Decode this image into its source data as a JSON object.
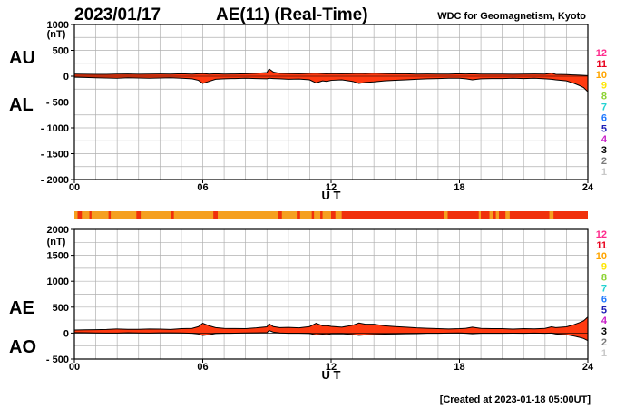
{
  "header": {
    "date": "2023/01/17",
    "title": "AE(11) (Real-Time)",
    "source": "WDC for Geomagnetism, Kyoto",
    "created": "[Created at 2023-01-18 05:00UT]"
  },
  "station_key": {
    "labels": [
      "12",
      "11",
      "10",
      "9",
      "8",
      "7",
      "6",
      "5",
      "4",
      "3",
      "2",
      "1"
    ],
    "colors": [
      "#ff2a8c",
      "#e8001c",
      "#ffa500",
      "#ffe600",
      "#8cd232",
      "#23d2d2",
      "#1e78ff",
      "#1e1eb4",
      "#c81ec8",
      "#000000",
      "#7a7a7a",
      "#c8c8c8"
    ]
  },
  "colors": {
    "fill": "#ff3a10",
    "strip_main": "#f0300c",
    "strip_alt": "#f5a020",
    "line": "#000000",
    "grid": "#b0b0b0"
  },
  "chart_data": [
    {
      "id": "au_al",
      "type": "area",
      "series_labels": [
        "AU",
        "AL"
      ],
      "xlabel": "U T",
      "ylabel_unit": "(nT)",
      "xlim": [
        0,
        24
      ],
      "ylim": [
        -2000,
        1000
      ],
      "x_ticks": [
        "00",
        "06",
        "12",
        "18",
        "24"
      ],
      "y_ticks": [
        "1000",
        "500",
        "0",
        "- 500",
        "- 1000",
        "- 1500",
        "- 2000"
      ],
      "y_tick_values": [
        1000,
        500,
        0,
        -500,
        -1000,
        -1500,
        -2000
      ],
      "x_hours": [
        0,
        0.5,
        1,
        1.5,
        2,
        2.5,
        3,
        3.5,
        4,
        4.5,
        5,
        5.5,
        5.8,
        6,
        6.3,
        6.6,
        7,
        7.5,
        8,
        8.5,
        9,
        9.1,
        9.3,
        9.6,
        10,
        10.5,
        11,
        11.3,
        11.6,
        11.8,
        12,
        12.5,
        13,
        13.3,
        13.6,
        14,
        14.5,
        15,
        15.5,
        16,
        16.5,
        17,
        17.5,
        18,
        18.3,
        18.6,
        19,
        19.5,
        20,
        20.5,
        21,
        21.5,
        22,
        22.3,
        22.5,
        23,
        23.3,
        23.6,
        23.8,
        24
      ],
      "au": [
        40,
        38,
        35,
        35,
        40,
        42,
        38,
        40,
        42,
        40,
        45,
        40,
        45,
        50,
        40,
        45,
        40,
        42,
        45,
        55,
        70,
        140,
        80,
        55,
        50,
        45,
        55,
        60,
        50,
        45,
        50,
        45,
        50,
        55,
        50,
        60,
        50,
        45,
        45,
        40,
        42,
        40,
        40,
        45,
        42,
        45,
        40,
        40,
        40,
        38,
        40,
        42,
        40,
        60,
        35,
        30,
        25,
        20,
        15,
        10
      ],
      "al": [
        -20,
        -25,
        -30,
        -35,
        -40,
        -30,
        -35,
        -40,
        -35,
        -30,
        -40,
        -50,
        -80,
        -140,
        -100,
        -60,
        -50,
        -45,
        -40,
        -45,
        -50,
        -40,
        -45,
        -50,
        -60,
        -55,
        -70,
        -130,
        -90,
        -100,
        -80,
        -70,
        -100,
        -140,
        -120,
        -110,
        -90,
        -80,
        -70,
        -60,
        -50,
        -45,
        -40,
        -40,
        -50,
        -70,
        -50,
        -45,
        -45,
        -40,
        -45,
        -40,
        -50,
        -60,
        -70,
        -90,
        -130,
        -180,
        -220,
        -300
      ]
    },
    {
      "id": "ae_ao",
      "type": "area",
      "series_labels": [
        "AE",
        "AO"
      ],
      "xlabel": "U T",
      "ylabel_unit": "(nT)",
      "xlim": [
        0,
        24
      ],
      "ylim": [
        -500,
        2000
      ],
      "x_ticks": [
        "00",
        "06",
        "12",
        "18",
        "24"
      ],
      "y_ticks": [
        "2000",
        "1500",
        "1000",
        "500",
        "0",
        "- 500"
      ],
      "y_tick_values": [
        2000,
        1500,
        1000,
        500,
        0,
        -500
      ],
      "x_hours": [
        0,
        0.5,
        1,
        1.5,
        2,
        2.5,
        3,
        3.5,
        4,
        4.5,
        5,
        5.5,
        5.8,
        6,
        6.3,
        6.6,
        7,
        7.5,
        8,
        8.5,
        9,
        9.1,
        9.3,
        9.6,
        10,
        10.5,
        11,
        11.3,
        11.6,
        11.8,
        12,
        12.5,
        13,
        13.3,
        13.6,
        14,
        14.5,
        15,
        15.5,
        16,
        16.5,
        17,
        17.5,
        18,
        18.3,
        18.6,
        19,
        19.5,
        20,
        20.5,
        21,
        21.5,
        22,
        22.3,
        22.5,
        23,
        23.3,
        23.6,
        23.8,
        24
      ],
      "ae": [
        60,
        63,
        65,
        70,
        80,
        72,
        73,
        80,
        77,
        70,
        85,
        90,
        125,
        190,
        140,
        105,
        90,
        87,
        85,
        100,
        120,
        180,
        125,
        105,
        110,
        100,
        125,
        190,
        140,
        145,
        130,
        115,
        150,
        195,
        170,
        170,
        140,
        125,
        115,
        100,
        92,
        85,
        80,
        85,
        92,
        115,
        90,
        85,
        85,
        78,
        85,
        82,
        90,
        120,
        105,
        120,
        155,
        200,
        235,
        310
      ],
      "ao": [
        10,
        7,
        3,
        0,
        0,
        6,
        2,
        0,
        4,
        5,
        3,
        -5,
        -18,
        -45,
        -30,
        -8,
        -5,
        -2,
        3,
        5,
        10,
        50,
        18,
        3,
        -5,
        -5,
        -8,
        -35,
        -20,
        -28,
        -15,
        -13,
        -25,
        -43,
        -35,
        -25,
        -20,
        -18,
        -13,
        -10,
        -4,
        -3,
        0,
        3,
        -4,
        -13,
        -5,
        -3,
        -3,
        -1,
        -3,
        1,
        -5,
        0,
        -18,
        -30,
        -53,
        -80,
        -103,
        -145
      ]
    },
    {
      "id": "station_strip",
      "type": "heatmap",
      "description_values": "number of contributing stations per time bin (11 = majority, 10 = lighter segments)",
      "x_hours": [
        0,
        0.15,
        0.35,
        0.7,
        0.8,
        1.6,
        1.7,
        2.9,
        3.1,
        4.5,
        4.65,
        6.5,
        6.7,
        9.5,
        9.7,
        10.4,
        10.55,
        11.1,
        11.2,
        11.5,
        11.6,
        12.0,
        12.2,
        12.5,
        12.9,
        17.3,
        17.45,
        18.9,
        19.0,
        19.4,
        19.55,
        19.7,
        19.85,
        20.15,
        20.35,
        22.2,
        22.4,
        24
      ],
      "stations": [
        10,
        11,
        10,
        11,
        10,
        11,
        10,
        11,
        10,
        11,
        10,
        11,
        10,
        11,
        10,
        11,
        10,
        11,
        10,
        11,
        10,
        11,
        10,
        11,
        11,
        10,
        11,
        10,
        11,
        10,
        11,
        10,
        11,
        10,
        11,
        10,
        11,
        11
      ]
    }
  ]
}
